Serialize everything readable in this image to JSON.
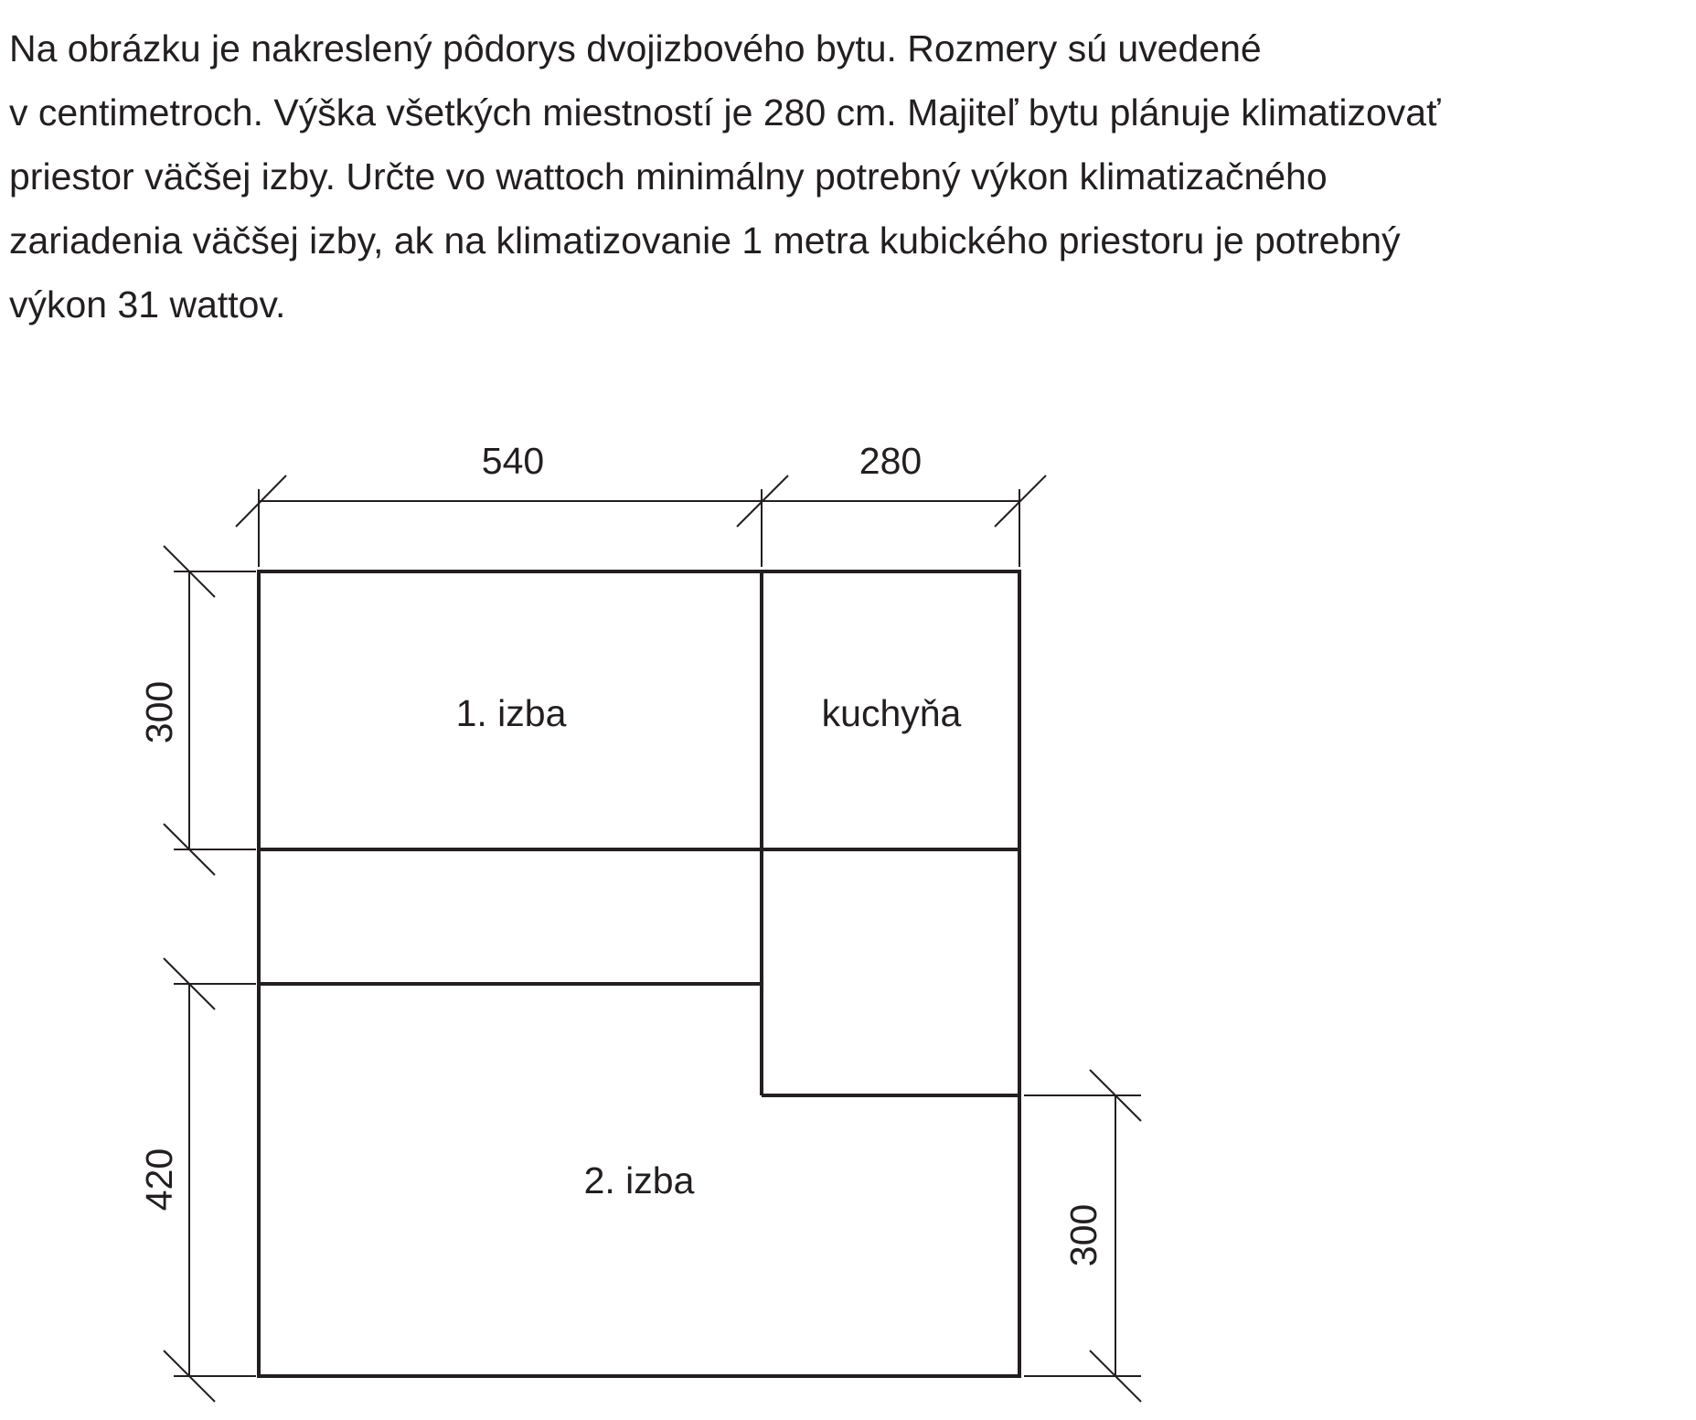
{
  "problem": {
    "lines": [
      "Na obrázku je nakreslený pôdorys dvojizbového bytu. Rozmery sú uvedené",
      "v centimetroch. Výška všetkých miestností je 280 cm. Majiteľ bytu plánuje klimatizovať",
      "priestor väčšej izby. Určte vo wattoch minimálny potrebný výkon klimatizačného",
      "zariadenia väčšej izby, ak na klimatizovanie 1 metra kubického priestoru je potrebný",
      "výkon 31 wattov."
    ]
  },
  "floor_plan": {
    "rooms": {
      "room1": "1. izba",
      "kitchen": "kuchyňa",
      "room2": "2. izba"
    },
    "dimensions": {
      "top_left_width": "540",
      "top_right_width": "280",
      "left_top_height": "300",
      "left_bottom_height": "420",
      "right_bottom_height": "300"
    }
  }
}
